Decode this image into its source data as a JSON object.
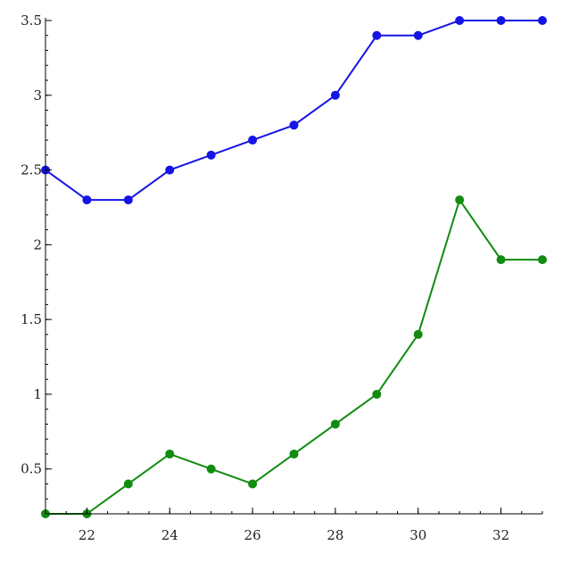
{
  "chart_data": {
    "type": "line",
    "title": "",
    "xlabel": "",
    "ylabel": "",
    "xlim": [
      21,
      33
    ],
    "ylim": [
      0.2,
      3.5
    ],
    "x_ticks": [
      22,
      24,
      26,
      28,
      30,
      32
    ],
    "y_ticks": [
      0.5,
      1,
      1.5,
      2,
      2.5,
      3,
      3.5
    ],
    "x_tick_labels": [
      "22",
      "24",
      "26",
      "28",
      "30",
      "32"
    ],
    "y_tick_labels": [
      "0.5",
      "1",
      "1.5",
      "2",
      "2.5",
      "3",
      "3.5"
    ],
    "grid": false,
    "x": [
      21,
      22,
      23,
      24,
      25,
      26,
      27,
      28,
      29,
      30,
      31,
      32,
      33
    ],
    "series": [
      {
        "color": "#1414e6",
        "values": [
          2.5,
          2.3,
          2.3,
          2.5,
          2.6,
          2.7,
          2.8,
          3.0,
          3.4,
          3.4,
          3.5,
          3.5,
          3.5
        ]
      },
      {
        "color": "#108c10",
        "values": [
          0.2,
          0.2,
          0.4,
          0.6,
          0.5,
          0.4,
          0.6,
          0.8,
          1.0,
          1.4,
          2.3,
          1.9,
          1.9
        ]
      }
    ]
  }
}
